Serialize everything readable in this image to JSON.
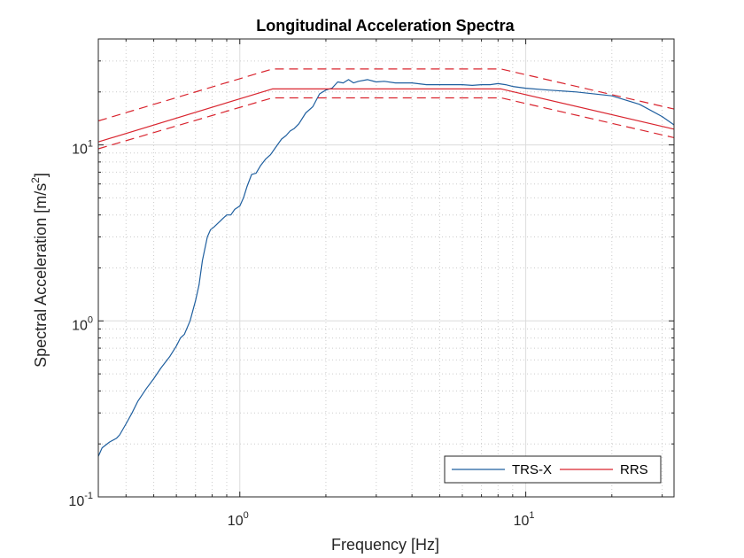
{
  "chart_data": {
    "type": "line",
    "title": "Longitudinal Acceleration Spectra",
    "xlabel": "Frequency [Hz]",
    "ylabel_text": "Spectral Acceleration [m/s",
    "ylabel_sup": "2",
    "ylabel_close": "]",
    "xscale": "log",
    "yscale": "log",
    "xlim": [
      0.32,
      33
    ],
    "ylim": [
      0.1,
      40
    ],
    "x_ticks": [
      {
        "value": 1,
        "base": "10",
        "exp": "0"
      },
      {
        "value": 10,
        "base": "10",
        "exp": "1"
      }
    ],
    "y_ticks": [
      {
        "value": 0.1,
        "base": "10",
        "exp": "-1"
      },
      {
        "value": 1,
        "base": "10",
        "exp": "0"
      },
      {
        "value": 10,
        "base": "10",
        "exp": "1"
      }
    ],
    "grid": true,
    "minor_grid": true,
    "legend_position": "bottom-right",
    "series": [
      {
        "name": "TRS-X",
        "color": "#1f5f9f",
        "style": "solid",
        "x": [
          0.32,
          0.33,
          0.35,
          0.37,
          0.38,
          0.4,
          0.42,
          0.44,
          0.47,
          0.5,
          0.53,
          0.57,
          0.6,
          0.62,
          0.64,
          0.67,
          0.7,
          0.72,
          0.74,
          0.77,
          0.79,
          0.81,
          0.84,
          0.87,
          0.9,
          0.93,
          0.96,
          1.0,
          1.03,
          1.06,
          1.1,
          1.14,
          1.18,
          1.23,
          1.28,
          1.33,
          1.4,
          1.45,
          1.5,
          1.55,
          1.61,
          1.7,
          1.8,
          1.9,
          2.0,
          2.1,
          2.2,
          2.3,
          2.4,
          2.5,
          2.6,
          2.8,
          3.0,
          3.2,
          3.5,
          4.0,
          4.5,
          5.0,
          5.5,
          6.0,
          6.5,
          7.0,
          7.5,
          8.0,
          8.5,
          9.0,
          10.0,
          12.0,
          15.0,
          20.0,
          25.0,
          30.0,
          33.0
        ],
        "y": [
          0.17,
          0.19,
          0.205,
          0.215,
          0.225,
          0.26,
          0.3,
          0.35,
          0.41,
          0.47,
          0.54,
          0.63,
          0.72,
          0.8,
          0.84,
          1.0,
          1.3,
          1.6,
          2.2,
          3.0,
          3.3,
          3.4,
          3.6,
          3.8,
          4.0,
          4.0,
          4.3,
          4.5,
          5.0,
          5.8,
          6.8,
          6.9,
          7.6,
          8.3,
          8.8,
          9.6,
          10.8,
          11.3,
          12.0,
          12.4,
          13.2,
          15.2,
          16.5,
          19.5,
          20.5,
          21.0,
          22.8,
          22.5,
          23.5,
          22.5,
          23.0,
          23.5,
          22.8,
          23.0,
          22.5,
          22.5,
          22.0,
          22.0,
          22.0,
          22.0,
          21.8,
          22.0,
          22.0,
          22.3,
          22.0,
          21.5,
          21.0,
          20.5,
          20.0,
          19.0,
          17.0,
          14.5,
          13.0
        ]
      },
      {
        "name": "RRS",
        "color": "#d9252f",
        "style": "solid",
        "x": [
          0.32,
          1.3,
          8.2,
          33
        ],
        "y": [
          10.4,
          20.8,
          20.8,
          12.3
        ]
      },
      {
        "name": "",
        "color": "#d9252f",
        "style": "dashed",
        "x": [
          0.32,
          1.3,
          8.2,
          33
        ],
        "y": [
          13.7,
          27.0,
          27.0,
          16.0
        ]
      },
      {
        "name": "",
        "color": "#d9252f",
        "style": "dashed",
        "x": [
          0.32,
          1.3,
          8.2,
          33
        ],
        "y": [
          9.5,
          18.5,
          18.5,
          11.0
        ]
      }
    ]
  }
}
